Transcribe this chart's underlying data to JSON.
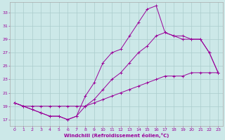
{
  "xlabel": "Windchill (Refroidissement éolien,°C)",
  "bg_color": "#cce8e8",
  "line_color": "#990099",
  "grid_color": "#aacccc",
  "spine_color": "#aaaaaa",
  "x_ticks": [
    0,
    1,
    2,
    3,
    4,
    5,
    6,
    7,
    8,
    9,
    10,
    11,
    12,
    13,
    14,
    15,
    16,
    17,
    18,
    19,
    20,
    21,
    22,
    23
  ],
  "y_ticks": [
    17,
    19,
    21,
    23,
    25,
    27,
    29,
    31,
    33
  ],
  "xlim": [
    -0.5,
    23.5
  ],
  "ylim": [
    16.0,
    34.5
  ],
  "series1": {
    "x": [
      0,
      1,
      2,
      3,
      4,
      5,
      6,
      7,
      8,
      9,
      10,
      11,
      12,
      13,
      14,
      15,
      16,
      17,
      18,
      19,
      20,
      21,
      22,
      23
    ],
    "y": [
      19.5,
      19.0,
      18.5,
      18.0,
      17.5,
      17.5,
      17.0,
      17.5,
      20.5,
      22.5,
      25.5,
      27.0,
      27.5,
      29.5,
      31.5,
      33.5,
      34.0,
      30.0,
      29.5,
      29.0,
      29.0,
      29.0,
      27.0,
      24.0
    ]
  },
  "series2": {
    "x": [
      0,
      1,
      2,
      3,
      4,
      5,
      6,
      7,
      8,
      9,
      10,
      11,
      12,
      13,
      14,
      15,
      16,
      17,
      18,
      19,
      20,
      21,
      22,
      23
    ],
    "y": [
      19.5,
      19.0,
      19.0,
      19.0,
      19.0,
      19.0,
      19.0,
      19.0,
      19.0,
      19.5,
      20.0,
      20.5,
      21.0,
      21.5,
      22.0,
      22.5,
      23.0,
      23.5,
      23.5,
      23.5,
      24.0,
      24.0,
      24.0,
      24.0
    ]
  },
  "series3": {
    "x": [
      0,
      1,
      2,
      3,
      4,
      5,
      6,
      7,
      8,
      9,
      10,
      11,
      12,
      13,
      14,
      15,
      16,
      17,
      18,
      19,
      20,
      21,
      22,
      23
    ],
    "y": [
      19.5,
      19.0,
      18.5,
      18.0,
      17.5,
      17.5,
      17.0,
      17.5,
      19.0,
      20.0,
      21.5,
      23.0,
      24.0,
      25.5,
      27.0,
      28.0,
      29.5,
      30.0,
      29.5,
      29.5,
      29.0,
      29.0,
      27.0,
      24.0
    ]
  }
}
